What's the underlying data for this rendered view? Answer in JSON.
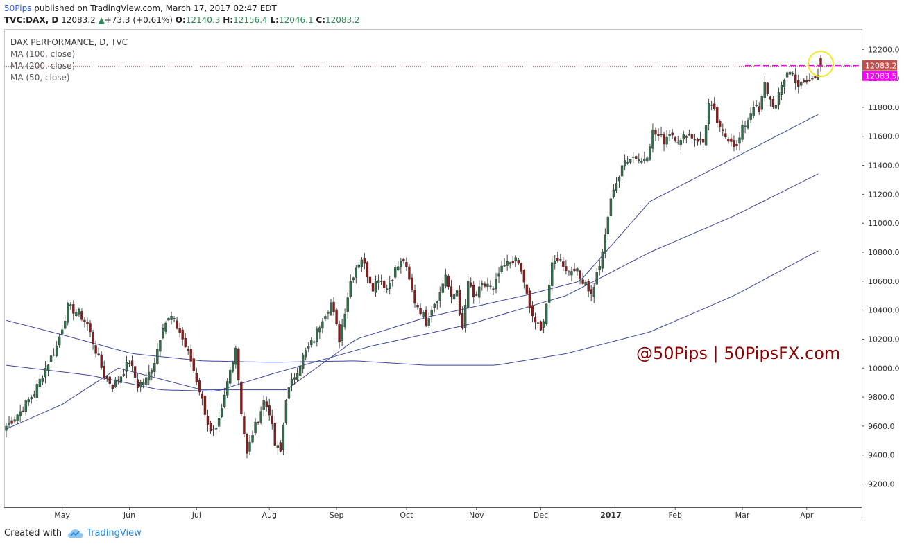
{
  "header": {
    "brand": "50Pips",
    "published": " published on TradingView.com, March 17, 2017 02:47 EDT",
    "symbol": "TVC:DAX, D",
    "last": "12083.2",
    "change": "+73.3 (+0.61%)",
    "o_label": "O:",
    "o": "12140.3",
    "h_label": "H:",
    "h": "12156.4",
    "l_label": "L:",
    "l": "12046.1",
    "c_label": "C:",
    "c": "12083.2"
  },
  "legend": {
    "title": "DAX PERFORMANCE, D, TVC",
    "ma1": "MA (100, close)",
    "ma2": "MA (200, close)",
    "ma3": "MA (50, close)"
  },
  "watermark": "@50Pips | 50PipsFX.com",
  "footer": {
    "created": "Created with",
    "tv": "TradingView"
  },
  "colors": {
    "up": "#2f6f4a",
    "down": "#8b1a1a",
    "ma": "#3a45a0",
    "price_label": "#c0504d",
    "alert": "#ff00ff",
    "highlight": "#f5e625"
  },
  "chart_data": {
    "type": "candlestick",
    "title": "DAX PERFORMANCE, D, TVC",
    "ylim": [
      9040,
      12340
    ],
    "y_ticks": [
      9200,
      9400,
      9600,
      9800,
      10000,
      10200,
      10400,
      10600,
      10800,
      11000,
      11200,
      11400,
      11600,
      11800,
      12000,
      12200
    ],
    "x_ticks": [
      "May",
      "Jun",
      "Jul",
      "Aug",
      "Sep",
      "Oct",
      "Nov",
      "Dec",
      "2017",
      "Feb",
      "Mar",
      "Apr"
    ],
    "last_price_label": "12083.2",
    "alert_label": "12083.5",
    "close_path": [
      [
        0,
        9600
      ],
      [
        5,
        9700
      ],
      [
        10,
        9830
      ],
      [
        14,
        10000
      ],
      [
        18,
        10150
      ],
      [
        22,
        10420
      ],
      [
        26,
        10380
      ],
      [
        29,
        10300
      ],
      [
        32,
        10120
      ],
      [
        35,
        9950
      ],
      [
        38,
        9880
      ],
      [
        41,
        9950
      ],
      [
        44,
        10050
      ],
      [
        47,
        9880
      ],
      [
        50,
        9920
      ],
      [
        53,
        10050
      ],
      [
        56,
        10300
      ],
      [
        59,
        10350
      ],
      [
        62,
        10250
      ],
      [
        64,
        10150
      ],
      [
        66,
        10050
      ],
      [
        69,
        9850
      ],
      [
        71,
        9700
      ],
      [
        73,
        9550
      ],
      [
        75,
        9560
      ],
      [
        77,
        9700
      ],
      [
        79,
        9900
      ],
      [
        82,
        10150
      ],
      [
        84,
        9700
      ],
      [
        86,
        9400
      ],
      [
        88,
        9550
      ],
      [
        90,
        9650
      ],
      [
        92,
        9770
      ],
      [
        94,
        9700
      ],
      [
        96,
        9470
      ],
      [
        98,
        9420
      ],
      [
        100,
        9800
      ],
      [
        103,
        9950
      ],
      [
        106,
        10080
      ],
      [
        110,
        10200
      ],
      [
        113,
        10350
      ],
      [
        116,
        10450
      ],
      [
        119,
        10200
      ],
      [
        121,
        10400
      ],
      [
        123,
        10600
      ],
      [
        125,
        10700
      ],
      [
        127,
        10760
      ],
      [
        129,
        10650
      ],
      [
        131,
        10560
      ],
      [
        133,
        10630
      ],
      [
        136,
        10550
      ],
      [
        139,
        10680
      ],
      [
        142,
        10750
      ],
      [
        144,
        10600
      ],
      [
        146,
        10460
      ],
      [
        148,
        10400
      ],
      [
        150,
        10320
      ],
      [
        152,
        10420
      ],
      [
        155,
        10520
      ],
      [
        157,
        10650
      ],
      [
        159,
        10470
      ],
      [
        161,
        10540
      ],
      [
        163,
        10250
      ],
      [
        165,
        10600
      ],
      [
        167,
        10480
      ],
      [
        170,
        10560
      ],
      [
        172,
        10580
      ],
      [
        174,
        10530
      ],
      [
        176,
        10650
      ],
      [
        178,
        10700
      ],
      [
        181,
        10750
      ],
      [
        183,
        10720
      ],
      [
        185,
        10600
      ],
      [
        187,
        10400
      ],
      [
        189,
        10320
      ],
      [
        191,
        10250
      ],
      [
        193,
        10450
      ],
      [
        195,
        10700
      ],
      [
        197,
        10760
      ],
      [
        199,
        10720
      ],
      [
        201,
        10660
      ],
      [
        203,
        10700
      ],
      [
        205,
        10620
      ],
      [
        207,
        10600
      ],
      [
        209,
        10500
      ],
      [
        211,
        10650
      ],
      [
        213,
        10780
      ],
      [
        215,
        11050
      ],
      [
        217,
        11250
      ],
      [
        219,
        11320
      ],
      [
        221,
        11430
      ],
      [
        223,
        11460
      ],
      [
        225,
        11460
      ],
      [
        227,
        11430
      ],
      [
        229,
        11480
      ],
      [
        231,
        11630
      ],
      [
        233,
        11600
      ],
      [
        235,
        11570
      ],
      [
        237,
        11630
      ],
      [
        239,
        11600
      ],
      [
        241,
        11560
      ],
      [
        243,
        11620
      ],
      [
        245,
        11600
      ],
      [
        247,
        11580
      ],
      [
        249,
        11560
      ],
      [
        251,
        11820
      ],
      [
        253,
        11760
      ],
      [
        255,
        11640
      ],
      [
        257,
        11600
      ],
      [
        259,
        11580
      ],
      [
        261,
        11520
      ],
      [
        263,
        11650
      ],
      [
        265,
        11720
      ],
      [
        267,
        11820
      ],
      [
        269,
        11760
      ],
      [
        271,
        11960
      ],
      [
        273,
        11850
      ],
      [
        275,
        11800
      ],
      [
        277,
        11950
      ],
      [
        279,
        12050
      ],
      [
        281,
        12030
      ],
      [
        283,
        11950
      ],
      [
        285,
        11960
      ],
      [
        287,
        11980
      ],
      [
        289,
        12010
      ],
      [
        291,
        12083.2
      ]
    ],
    "candle_count": 292,
    "series": [
      {
        "name": "MA (50, close)",
        "values": [
          [
            0,
            9580
          ],
          [
            20,
            9750
          ],
          [
            40,
            10000
          ],
          [
            70,
            9850
          ],
          [
            100,
            9850
          ],
          [
            125,
            10200
          ],
          [
            150,
            10350
          ],
          [
            185,
            10500
          ],
          [
            205,
            10600
          ],
          [
            230,
            11150
          ],
          [
            260,
            11450
          ],
          [
            291,
            11760
          ]
        ]
      },
      {
        "name": "MA (100, close)",
        "values": [
          [
            0,
            10020
          ],
          [
            30,
            9950
          ],
          [
            55,
            9850
          ],
          [
            75,
            9840
          ],
          [
            95,
            9960
          ],
          [
            130,
            10150
          ],
          [
            165,
            10300
          ],
          [
            200,
            10500
          ],
          [
            230,
            10800
          ],
          [
            260,
            11050
          ],
          [
            291,
            11350
          ]
        ]
      },
      {
        "name": "MA (200, close)",
        "values": [
          [
            0,
            10330
          ],
          [
            20,
            10230
          ],
          [
            45,
            10100
          ],
          [
            70,
            10050
          ],
          [
            95,
            10040
          ],
          [
            125,
            10050
          ],
          [
            150,
            10020
          ],
          [
            175,
            10020
          ],
          [
            200,
            10100
          ],
          [
            230,
            10250
          ],
          [
            260,
            10500
          ],
          [
            291,
            10820
          ]
        ]
      }
    ],
    "date_ticks_at_index": [
      20,
      44,
      68,
      94,
      118,
      143,
      168,
      191,
      216,
      239,
      263,
      286
    ]
  }
}
